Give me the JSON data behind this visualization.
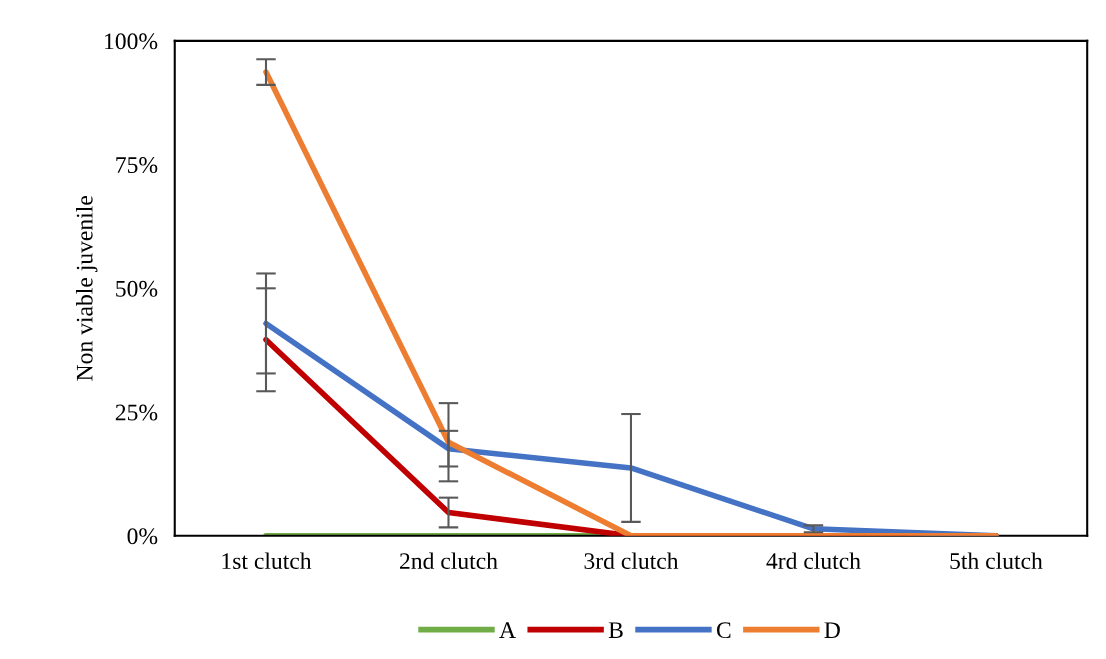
{
  "chart_data": {
    "type": "line",
    "ylabel": "Non viable juvenile",
    "categories": [
      "1st clutch",
      "2nd clutch",
      "3rd clutch",
      "4rd clutch",
      "5th clutch"
    ],
    "series": [
      {
        "name": "A",
        "color": "#70ad47",
        "values": [
          0,
          0,
          0,
          null,
          null
        ]
      },
      {
        "name": "B",
        "color": "#c00000",
        "values": [
          39.6,
          4.7,
          0,
          0,
          0
        ],
        "errors": [
          10.4,
          3.0,
          null,
          null,
          null
        ]
      },
      {
        "name": "C",
        "color": "#4472c4",
        "values": [
          42.9,
          17.6,
          13.7,
          1.4,
          0
        ],
        "errors": [
          10.1,
          3.6,
          10.9,
          0.7,
          null
        ]
      },
      {
        "name": "D",
        "color": "#ed7d31",
        "values": [
          93.7,
          18.9,
          0,
          0,
          0
        ],
        "errors": [
          2.6,
          7.9,
          null,
          null,
          null
        ]
      }
    ],
    "ylim": [
      0,
      100
    ],
    "yticks": [
      {
        "value": 0,
        "label": "0%"
      },
      {
        "value": 25,
        "label": "25%"
      },
      {
        "value": 50,
        "label": "50%"
      },
      {
        "value": 75,
        "label": "75%"
      },
      {
        "value": 100,
        "label": "100%"
      }
    ],
    "grid": false,
    "legend": "bottom",
    "marker": "none",
    "line_style": "solid"
  }
}
